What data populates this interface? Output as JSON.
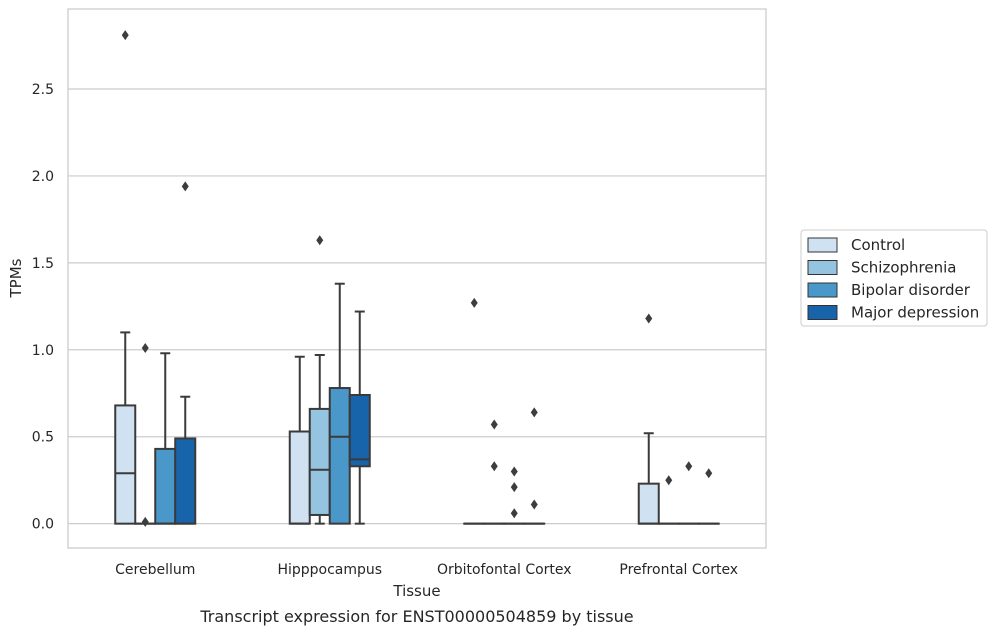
{
  "chart_data": {
    "type": "box",
    "title": "",
    "caption": "Transcript expression for ENST00000504859 by tissue",
    "xlabel": "Tissue",
    "ylabel": "TPMs",
    "ylim": [
      -0.14,
      2.96
    ],
    "yticks": [
      "0.0",
      "0.5",
      "1.0",
      "1.5",
      "2.0",
      "2.5"
    ],
    "ytick_values": [
      0.0,
      0.5,
      1.0,
      1.5,
      2.0,
      2.5
    ],
    "grid": "horizontal",
    "legend_position": "right",
    "categories": [
      "Cerebellum",
      "Hipppocampus",
      "Orbitofontal Cortex",
      "Prefrontal Cortex"
    ],
    "series": [
      {
        "name": "Control",
        "color": "#d0e1f2",
        "boxes": [
          {
            "whislo": 0.0,
            "q1": 0.0,
            "med": 0.29,
            "q3": 0.68,
            "whishi": 1.1,
            "fliers": [
              2.81
            ]
          },
          {
            "whislo": 0.0,
            "q1": 0.0,
            "med": 0.0,
            "q3": 0.53,
            "whishi": 0.96,
            "fliers": []
          },
          {
            "whislo": 0.0,
            "q1": 0.0,
            "med": 0.0,
            "q3": 0.0,
            "whishi": 0.0,
            "fliers": [
              1.27
            ]
          },
          {
            "whislo": 0.0,
            "q1": 0.0,
            "med": 0.0,
            "q3": 0.23,
            "whishi": 0.52,
            "fliers": [
              1.18
            ]
          }
        ]
      },
      {
        "name": "Schizophrenia",
        "color": "#94c4df",
        "boxes": [
          {
            "whislo": 0.0,
            "q1": 0.0,
            "med": 0.0,
            "q3": 0.0,
            "whishi": 0.0,
            "fliers": [
              1.01,
              0.01
            ]
          },
          {
            "whislo": 0.0,
            "q1": 0.05,
            "med": 0.31,
            "q3": 0.66,
            "whishi": 0.97,
            "fliers": [
              1.63
            ]
          },
          {
            "whislo": 0.0,
            "q1": 0.0,
            "med": 0.0,
            "q3": 0.0,
            "whishi": 0.0,
            "fliers": [
              0.57,
              0.33
            ]
          },
          {
            "whislo": 0.0,
            "q1": 0.0,
            "med": 0.0,
            "q3": 0.0,
            "whishi": 0.0,
            "fliers": [
              0.25
            ]
          }
        ]
      },
      {
        "name": "Bipolar disorder",
        "color": "#4a98c9",
        "boxes": [
          {
            "whislo": 0.0,
            "q1": 0.0,
            "med": 0.0,
            "q3": 0.43,
            "whishi": 0.98,
            "fliers": []
          },
          {
            "whislo": 0.0,
            "q1": 0.0,
            "med": 0.5,
            "q3": 0.78,
            "whishi": 1.38,
            "fliers": []
          },
          {
            "whislo": 0.0,
            "q1": 0.0,
            "med": 0.0,
            "q3": 0.0,
            "whishi": 0.0,
            "fliers": [
              0.3,
              0.21,
              0.06
            ]
          },
          {
            "whislo": 0.0,
            "q1": 0.0,
            "med": 0.0,
            "q3": 0.0,
            "whishi": 0.0,
            "fliers": [
              0.33
            ]
          }
        ]
      },
      {
        "name": "Major depression",
        "color": "#1764ab",
        "boxes": [
          {
            "whislo": 0.0,
            "q1": 0.0,
            "med": 0.0,
            "q3": 0.49,
            "whishi": 0.73,
            "fliers": [
              1.94
            ]
          },
          {
            "whislo": 0.0,
            "q1": 0.33,
            "med": 0.37,
            "q3": 0.74,
            "whishi": 1.22,
            "fliers": []
          },
          {
            "whislo": 0.0,
            "q1": 0.0,
            "med": 0.0,
            "q3": 0.0,
            "whishi": 0.0,
            "fliers": [
              0.64,
              0.11
            ]
          },
          {
            "whislo": 0.0,
            "q1": 0.0,
            "med": 0.0,
            "q3": 0.0,
            "whishi": 0.0,
            "fliers": [
              0.29
            ]
          }
        ]
      }
    ]
  }
}
